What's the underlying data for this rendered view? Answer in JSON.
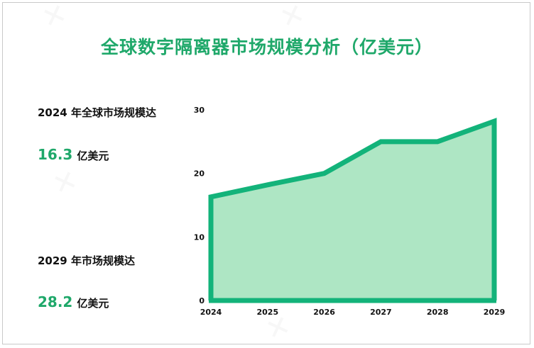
{
  "title": "全球数字隔离器市场规模分析（亿美元）",
  "stats": [
    {
      "label": "2024 年全球市场规模达",
      "value": "16.3",
      "unit": "亿美元"
    },
    {
      "label": "2029 年市场规模达",
      "value": "28.2",
      "unit": "亿美元"
    }
  ],
  "colors": {
    "accent": "#1fa86a",
    "line": "#13b37a",
    "fill": "#aee6c4"
  },
  "chart_data": {
    "type": "area",
    "title": "全球数字隔离器市场规模分析（亿美元）",
    "xlabel": "",
    "ylabel": "",
    "categories": [
      "2024",
      "2025",
      "2026",
      "2027",
      "2028",
      "2029"
    ],
    "values": [
      16.3,
      18.2,
      20.0,
      25.0,
      25.0,
      28.2
    ],
    "yticks": [
      0,
      10,
      20,
      30
    ],
    "ylim": [
      0,
      30
    ],
    "grid": false,
    "legend": "none"
  }
}
